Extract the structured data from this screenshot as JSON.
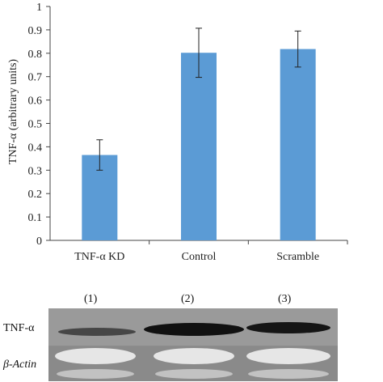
{
  "chart_data": {
    "type": "bar",
    "categories": [
      "TNF-α KD",
      "Control",
      "Scramble"
    ],
    "values": [
      0.365,
      0.802,
      0.818
    ],
    "error": [
      0.065,
      0.105,
      0.077
    ],
    "ylabel": "TNF-α (arbitrary units)",
    "ylim": [
      0,
      1
    ],
    "yticks": [
      "0",
      "0.1",
      "0.2",
      "0.3",
      "0.4",
      "0.5",
      "0.6",
      "0.7",
      "0.8",
      "0.9",
      "1"
    ],
    "grid": false,
    "bar_color": "#5b9bd5"
  },
  "blot": {
    "lanes": [
      "(1)",
      "(2)",
      "(3)"
    ],
    "row1_label": "TNF-α",
    "row2_label": "β-Actin"
  }
}
